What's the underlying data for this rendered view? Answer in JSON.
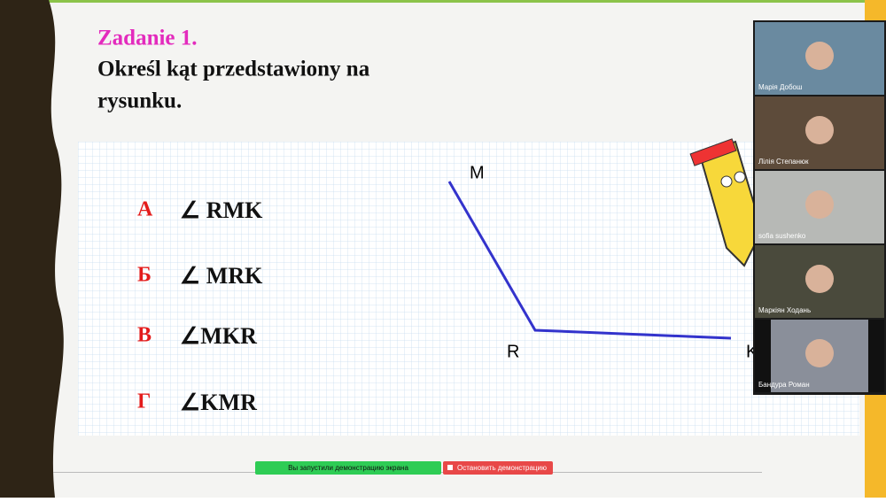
{
  "slide": {
    "task": "Zadanie 1.",
    "question_line1": "Określ kąt przedstawiony na",
    "question_line2": "rysunku.",
    "options": [
      {
        "letter": "А",
        "text": "∠ RMK"
      },
      {
        "letter": "Б",
        "text": "∠ MRK"
      },
      {
        "letter": "В",
        "text": "∠MKR"
      },
      {
        "letter": "Г",
        "text": "∠KMR"
      }
    ],
    "figure": {
      "points": [
        "M",
        "R",
        "K"
      ]
    }
  },
  "participants": [
    "Марія Добош",
    "Лілія Степанюк",
    "sofia sushenko",
    "Маркіян Ходань",
    "Бандура Роман"
  ],
  "share_bar": {
    "status": "Вы запустили демонстрацию экрана",
    "stop": "Остановить демонстрацию"
  }
}
